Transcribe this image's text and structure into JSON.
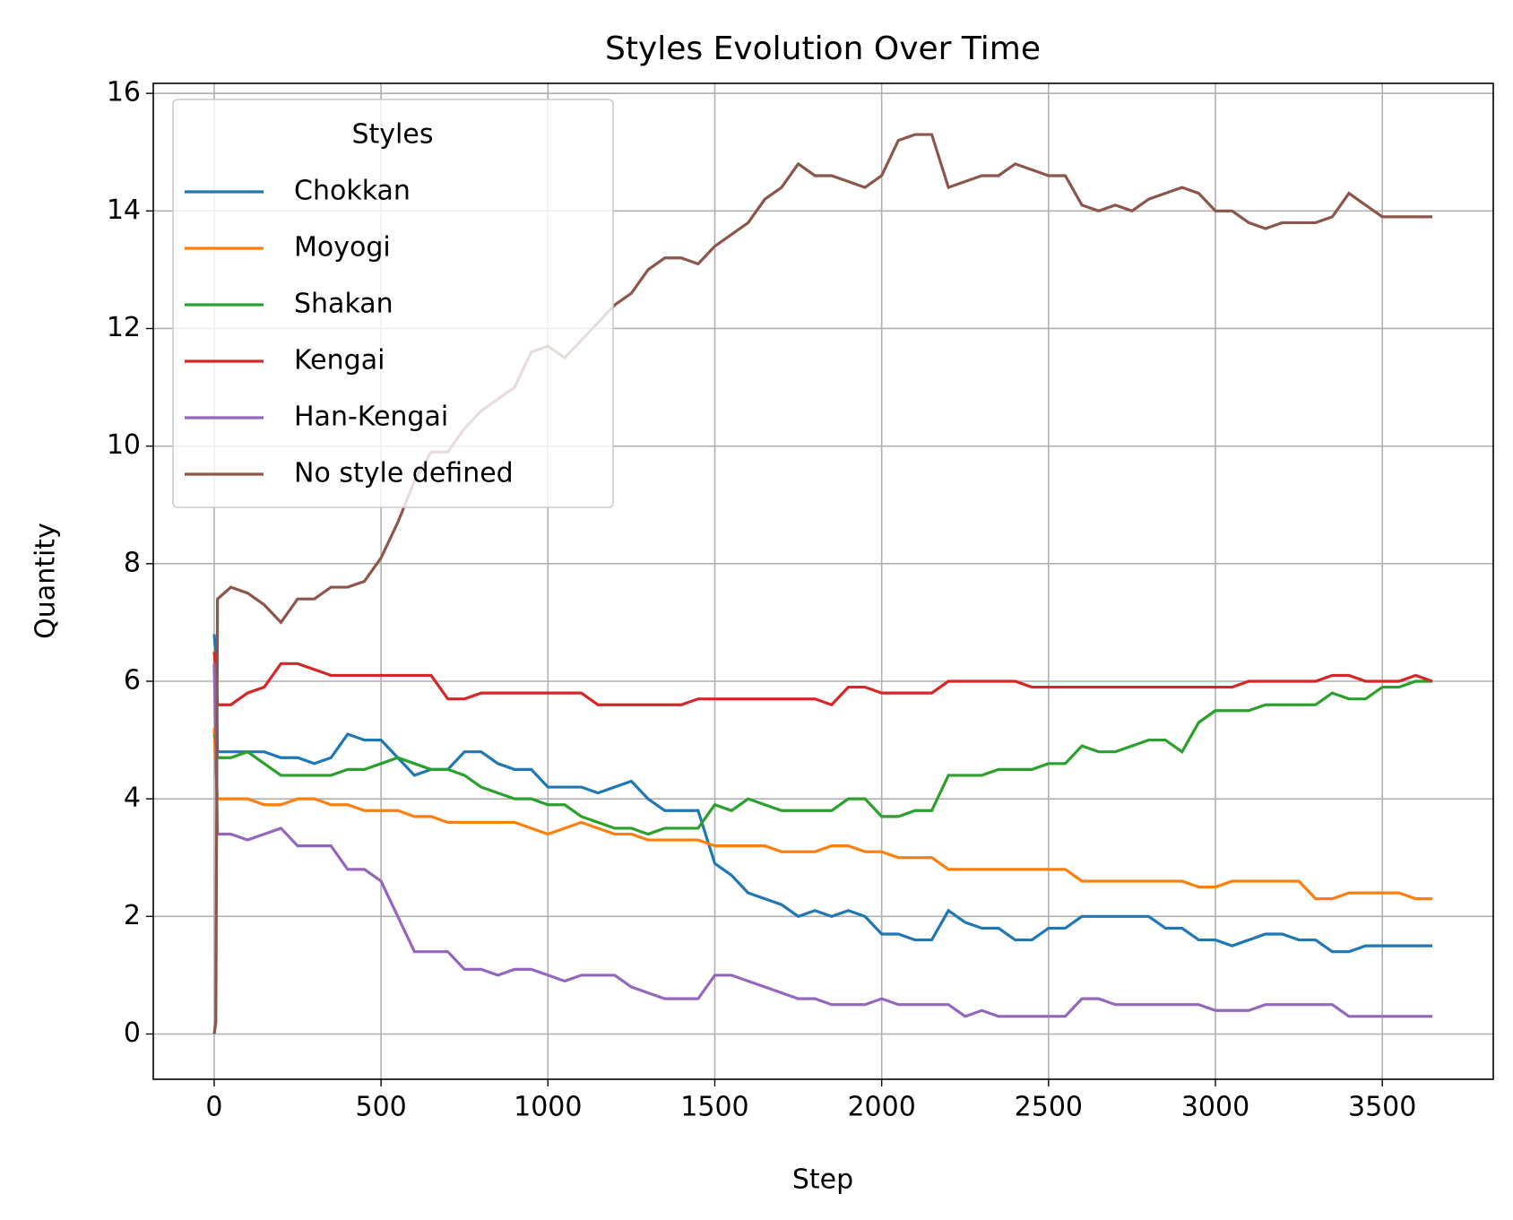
{
  "chart_data": {
    "type": "line",
    "title": "Styles Evolution Over Time",
    "x_label": "Step",
    "y_label": "Quantity",
    "x": [
      0,
      5,
      10,
      50,
      100,
      150,
      200,
      250,
      300,
      350,
      400,
      450,
      500,
      550,
      600,
      650,
      700,
      750,
      800,
      850,
      900,
      950,
      1000,
      1050,
      1100,
      1150,
      1200,
      1250,
      1300,
      1350,
      1400,
      1450,
      1500,
      1550,
      1600,
      1650,
      1700,
      1750,
      1800,
      1850,
      1900,
      1950,
      2000,
      2050,
      2100,
      2150,
      2200,
      2250,
      2300,
      2350,
      2400,
      2450,
      2500,
      2550,
      2600,
      2650,
      2700,
      2750,
      2800,
      2850,
      2900,
      2950,
      3000,
      3050,
      3100,
      3150,
      3200,
      3250,
      3300,
      3350,
      3400,
      3450,
      3500,
      3550,
      3600,
      3650
    ],
    "series": [
      {
        "name": "Chokkan",
        "color": "#1f77b4",
        "values": [
          6.8,
          6.5,
          4.8,
          4.8,
          4.8,
          4.8,
          4.7,
          4.7,
          4.6,
          4.7,
          5.1,
          5.0,
          5.0,
          4.7,
          4.4,
          4.5,
          4.5,
          4.8,
          4.8,
          4.6,
          4.5,
          4.5,
          4.2,
          4.2,
          4.2,
          4.1,
          4.2,
          4.3,
          4.0,
          3.8,
          3.8,
          3.8,
          2.9,
          2.7,
          2.4,
          2.3,
          2.2,
          2.0,
          2.1,
          2.0,
          2.1,
          2.0,
          1.7,
          1.7,
          1.6,
          1.6,
          2.1,
          1.9,
          1.8,
          1.8,
          1.6,
          1.6,
          1.8,
          1.8,
          2.0,
          2.0,
          2.0,
          2.0,
          2.0,
          1.8,
          1.8,
          1.6,
          1.6,
          1.5,
          1.6,
          1.7,
          1.7,
          1.6,
          1.6,
          1.4,
          1.4,
          1.5,
          1.5,
          1.5,
          1.5,
          1.5
        ]
      },
      {
        "name": "Moyogi",
        "color": "#ff7f0e",
        "values": [
          5.2,
          4.5,
          4.0,
          4.0,
          4.0,
          3.9,
          3.9,
          4.0,
          4.0,
          3.9,
          3.9,
          3.8,
          3.8,
          3.8,
          3.7,
          3.7,
          3.6,
          3.6,
          3.6,
          3.6,
          3.6,
          3.5,
          3.4,
          3.5,
          3.6,
          3.5,
          3.4,
          3.4,
          3.3,
          3.3,
          3.3,
          3.3,
          3.2,
          3.2,
          3.2,
          3.2,
          3.1,
          3.1,
          3.1,
          3.2,
          3.2,
          3.1,
          3.1,
          3.0,
          3.0,
          3.0,
          2.8,
          2.8,
          2.8,
          2.8,
          2.8,
          2.8,
          2.8,
          2.8,
          2.6,
          2.6,
          2.6,
          2.6,
          2.6,
          2.6,
          2.6,
          2.5,
          2.5,
          2.6,
          2.6,
          2.6,
          2.6,
          2.6,
          2.3,
          2.3,
          2.4,
          2.4,
          2.4,
          2.4,
          2.3,
          2.3
        ]
      },
      {
        "name": "Shakan",
        "color": "#2ca02c",
        "values": [
          5.1,
          5.0,
          4.7,
          4.7,
          4.8,
          4.6,
          4.4,
          4.4,
          4.4,
          4.4,
          4.5,
          4.5,
          4.6,
          4.7,
          4.6,
          4.5,
          4.5,
          4.4,
          4.2,
          4.1,
          4.0,
          4.0,
          3.9,
          3.9,
          3.7,
          3.6,
          3.5,
          3.5,
          3.4,
          3.5,
          3.5,
          3.5,
          3.9,
          3.8,
          4.0,
          3.9,
          3.8,
          3.8,
          3.8,
          3.8,
          4.0,
          4.0,
          3.7,
          3.7,
          3.8,
          3.8,
          4.4,
          4.4,
          4.4,
          4.5,
          4.5,
          4.5,
          4.6,
          4.6,
          4.9,
          4.8,
          4.8,
          4.9,
          5.0,
          5.0,
          4.8,
          5.3,
          5.5,
          5.5,
          5.5,
          5.6,
          5.6,
          5.6,
          5.6,
          5.8,
          5.7,
          5.7,
          5.9,
          5.9,
          6.0,
          6.0
        ]
      },
      {
        "name": "Kengai",
        "color": "#d62728",
        "values": [
          6.5,
          6.2,
          5.6,
          5.6,
          5.8,
          5.9,
          6.3,
          6.3,
          6.2,
          6.1,
          6.1,
          6.1,
          6.1,
          6.1,
          6.1,
          6.1,
          5.7,
          5.7,
          5.8,
          5.8,
          5.8,
          5.8,
          5.8,
          5.8,
          5.8,
          5.6,
          5.6,
          5.6,
          5.6,
          5.6,
          5.6,
          5.7,
          5.7,
          5.7,
          5.7,
          5.7,
          5.7,
          5.7,
          5.7,
          5.6,
          5.9,
          5.9,
          5.8,
          5.8,
          5.8,
          5.8,
          6.0,
          6.0,
          6.0,
          6.0,
          6.0,
          5.9,
          5.9,
          5.9,
          5.9,
          5.9,
          5.9,
          5.9,
          5.9,
          5.9,
          5.9,
          5.9,
          5.9,
          5.9,
          6.0,
          6.0,
          6.0,
          6.0,
          6.0,
          6.1,
          6.1,
          6.0,
          6.0,
          6.0,
          6.1,
          6.0
        ]
      },
      {
        "name": "Han-Kengai",
        "color": "#9467bd",
        "values": [
          6.3,
          5.0,
          3.4,
          3.4,
          3.3,
          3.4,
          3.5,
          3.2,
          3.2,
          3.2,
          2.8,
          2.8,
          2.6,
          2.0,
          1.4,
          1.4,
          1.4,
          1.1,
          1.1,
          1.0,
          1.1,
          1.1,
          1.0,
          0.9,
          1.0,
          1.0,
          1.0,
          0.8,
          0.7,
          0.6,
          0.6,
          0.6,
          1.0,
          1.0,
          0.9,
          0.8,
          0.7,
          0.6,
          0.6,
          0.5,
          0.5,
          0.5,
          0.6,
          0.5,
          0.5,
          0.5,
          0.5,
          0.3,
          0.4,
          0.3,
          0.3,
          0.3,
          0.3,
          0.3,
          0.6,
          0.6,
          0.5,
          0.5,
          0.5,
          0.5,
          0.5,
          0.5,
          0.4,
          0.4,
          0.4,
          0.5,
          0.5,
          0.5,
          0.5,
          0.5,
          0.3,
          0.3,
          0.3,
          0.3,
          0.3,
          0.3
        ]
      },
      {
        "name": "No style defined",
        "color": "#8c564b",
        "values": [
          0,
          0.2,
          7.4,
          7.6,
          7.5,
          7.3,
          7.0,
          7.4,
          7.4,
          7.6,
          7.6,
          7.7,
          8.1,
          8.7,
          9.4,
          9.9,
          9.9,
          10.3,
          10.6,
          10.8,
          11.0,
          11.6,
          11.7,
          11.5,
          11.8,
          12.1,
          12.4,
          12.6,
          13.0,
          13.2,
          13.2,
          13.1,
          13.4,
          13.6,
          13.8,
          14.2,
          14.4,
          14.8,
          14.6,
          14.6,
          14.5,
          14.4,
          14.6,
          15.2,
          15.3,
          15.3,
          14.4,
          14.5,
          14.6,
          14.6,
          14.8,
          14.7,
          14.6,
          14.6,
          14.1,
          14.0,
          14.1,
          14.0,
          14.2,
          14.3,
          14.4,
          14.3,
          14.0,
          14.0,
          13.8,
          13.7,
          13.8,
          13.8,
          13.8,
          13.9,
          14.3,
          14.1,
          13.9,
          13.9,
          13.9,
          13.9
        ]
      }
    ],
    "legend_title": "Styles",
    "legend": "upper left",
    "grid": true,
    "xlim": [
      -182.5,
      3832.5
    ],
    "xticks": [
      0,
      500,
      1000,
      1500,
      2000,
      2500,
      3000,
      3500
    ],
    "ylim": [
      -0.77,
      16.17
    ],
    "yticks": [
      0,
      2,
      4,
      6,
      8,
      10,
      12,
      14,
      16
    ]
  }
}
